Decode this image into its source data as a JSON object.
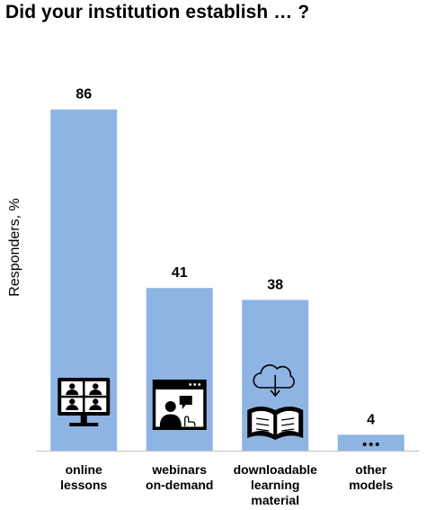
{
  "chart_data": {
    "type": "bar",
    "title": "Did your institution establish … ?",
    "ylabel": "Responders, %",
    "xlabel": "",
    "ylim": [
      0,
      100
    ],
    "grid": false,
    "bar_color": "#8eb4e3",
    "categories": [
      [
        "online",
        "lessons"
      ],
      [
        "webinars",
        "on-demand"
      ],
      [
        "downloadable",
        "learning",
        "material"
      ],
      [
        "other",
        "models"
      ]
    ],
    "values": [
      86,
      41,
      38,
      4
    ],
    "bar_icons": [
      "video-conference-icon",
      "webinar-screen-icon",
      "cloud-download-book-icon",
      "ellipsis-icon"
    ]
  }
}
